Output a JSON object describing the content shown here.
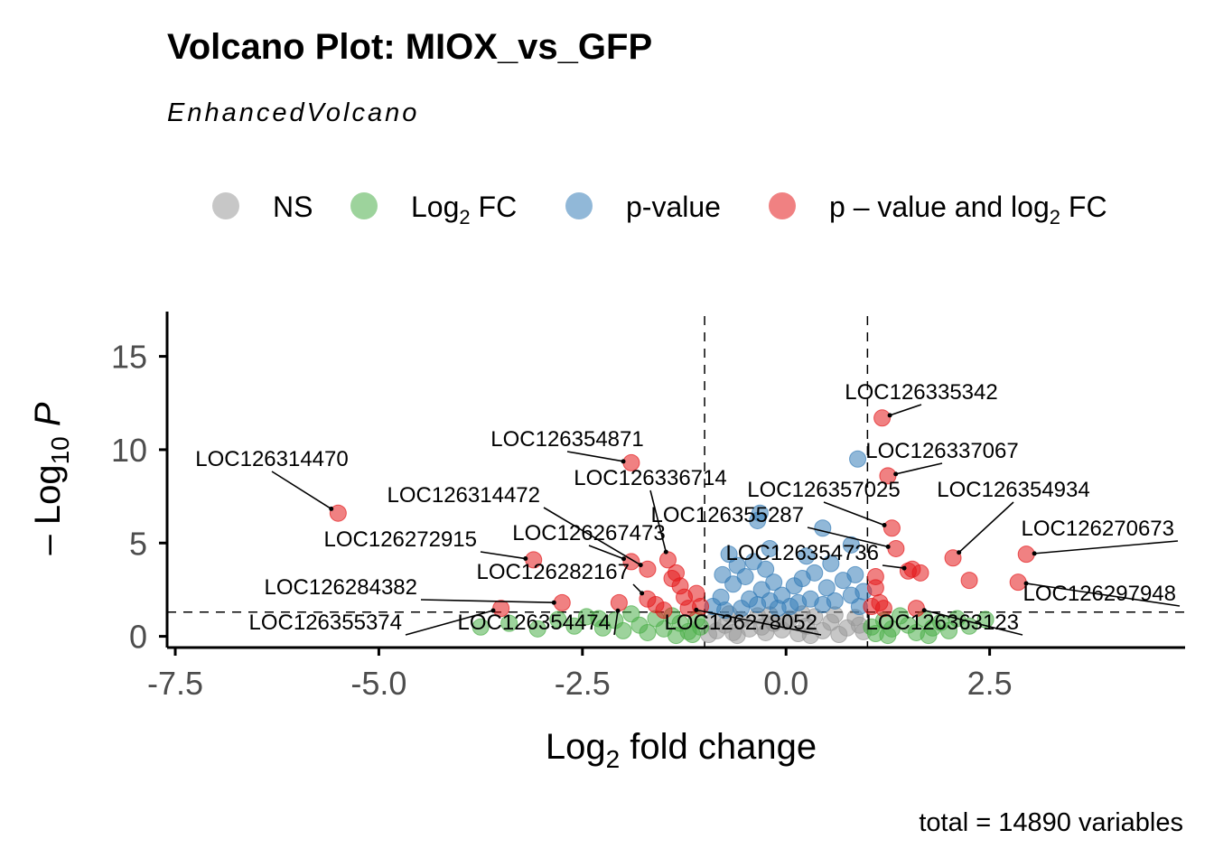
{
  "title": "Volcano Plot: MIOX_vs_GFP",
  "subtitle": "EnhancedVolcano",
  "caption": "total = 14890 variables",
  "colors": {
    "NS": "#999999",
    "Log2FC": "#4daf4a",
    "p-value": "#377eb8",
    "p-value-and-log2FC": "#e41a1c"
  },
  "legend": [
    {
      "key": "NS",
      "label": "NS",
      "color": "#999999"
    },
    {
      "key": "Log2FC",
      "label": "Log",
      "sub": "2",
      "tail": " FC",
      "color": "#4daf4a"
    },
    {
      "key": "p-value",
      "label": "p-value",
      "color": "#377eb8"
    },
    {
      "key": "p-value-and-log2FC",
      "label": "p – value and log",
      "sub": "2",
      "tail": " FC",
      "color": "#e41a1c"
    }
  ],
  "chart_data": {
    "type": "scatter",
    "title": "Volcano Plot: MIOX_vs_GFP",
    "xlabel": {
      "text": "Log",
      "sub": "2",
      "tail": " fold change"
    },
    "ylabel": {
      "prefix": "– Log",
      "sub": "10",
      "tail": " P"
    },
    "xlim": [
      -7.6,
      4.9
    ],
    "ylim": [
      -0.6,
      17.4
    ],
    "xticks": [
      -7.5,
      -5.0,
      -2.5,
      0.0,
      2.5
    ],
    "xtick_labels": [
      "-7.5",
      "-5.0",
      "-2.5",
      "0.0",
      "2.5"
    ],
    "yticks": [
      0,
      5,
      10,
      15
    ],
    "ytick_labels": [
      "0",
      "5",
      "10",
      "15"
    ],
    "fc_cutoff": [
      -1.0,
      1.0
    ],
    "p_cutoff_neglog10": 1.3,
    "series": [
      {
        "name": "NS",
        "color": "#999999",
        "points": [
          [
            -0.95,
            0.1
          ],
          [
            -0.85,
            0.3
          ],
          [
            -0.75,
            0.6
          ],
          [
            -0.65,
            0.2
          ],
          [
            -0.55,
            0.9
          ],
          [
            -0.45,
            0.4
          ],
          [
            -0.35,
            1.1
          ],
          [
            -0.25,
            0.2
          ],
          [
            -0.15,
            0.7
          ],
          [
            -0.05,
            0.35
          ],
          [
            0.05,
            0.95
          ],
          [
            0.15,
            0.15
          ],
          [
            0.25,
            0.55
          ],
          [
            0.35,
            1.05
          ],
          [
            0.45,
            0.3
          ],
          [
            0.55,
            0.75
          ],
          [
            0.65,
            0.1
          ],
          [
            0.75,
            0.45
          ],
          [
            0.85,
            1.0
          ],
          [
            0.95,
            0.25
          ],
          [
            -0.9,
            0.8
          ],
          [
            -0.6,
            0.05
          ],
          [
            -0.3,
            0.5
          ],
          [
            0.0,
            0.8
          ],
          [
            0.3,
            0.05
          ],
          [
            0.6,
            1.15
          ],
          [
            0.9,
            0.6
          ],
          [
            -0.7,
            1.2
          ],
          [
            0.2,
            1.2
          ],
          [
            -0.2,
            1.15
          ]
        ]
      },
      {
        "name": "Log2FC",
        "color": "#4daf4a",
        "points": [
          [
            -3.75,
            0.5
          ],
          [
            -3.4,
            0.7
          ],
          [
            -3.05,
            0.4
          ],
          [
            -2.8,
            0.9
          ],
          [
            -2.6,
            0.55
          ],
          [
            -2.45,
            1.05
          ],
          [
            -2.25,
            0.45
          ],
          [
            -2.1,
            0.85
          ],
          [
            -2.0,
            0.3
          ],
          [
            -1.9,
            1.2
          ],
          [
            -1.8,
            0.6
          ],
          [
            -1.7,
            0.2
          ],
          [
            -1.6,
            0.95
          ],
          [
            -1.5,
            0.4
          ],
          [
            -1.4,
            1.1
          ],
          [
            -1.3,
            0.7
          ],
          [
            -1.2,
            0.25
          ],
          [
            -1.1,
            0.9
          ],
          [
            -1.05,
            0.5
          ],
          [
            -1.15,
            0.1
          ],
          [
            1.05,
            0.5
          ],
          [
            1.1,
            0.15
          ],
          [
            1.2,
            0.85
          ],
          [
            1.3,
            0.4
          ],
          [
            1.4,
            1.1
          ],
          [
            1.5,
            0.6
          ],
          [
            1.6,
            0.2
          ],
          [
            1.7,
            0.95
          ],
          [
            1.8,
            0.45
          ],
          [
            1.9,
            0.75
          ],
          [
            2.0,
            0.3
          ],
          [
            2.1,
            0.95
          ],
          [
            2.25,
            0.55
          ],
          [
            2.45,
            0.9
          ],
          [
            1.25,
            0.05
          ],
          [
            1.75,
            0.05
          ],
          [
            -1.35,
            0.05
          ],
          [
            -2.3,
            0.95
          ]
        ]
      },
      {
        "name": "p-value",
        "color": "#377eb8",
        "points": [
          [
            -0.9,
            1.6
          ],
          [
            -0.8,
            2.1
          ],
          [
            -0.75,
            1.4
          ],
          [
            -0.65,
            2.8
          ],
          [
            -0.55,
            1.5
          ],
          [
            -0.5,
            3.2
          ],
          [
            -0.45,
            2.0
          ],
          [
            -0.4,
            4.0
          ],
          [
            -0.35,
            1.7
          ],
          [
            -0.3,
            2.5
          ],
          [
            -0.25,
            3.6
          ],
          [
            -0.2,
            1.9
          ],
          [
            -0.15,
            2.9
          ],
          [
            -0.1,
            1.5
          ],
          [
            -0.05,
            2.2
          ],
          [
            0.05,
            1.6
          ],
          [
            0.1,
            2.7
          ],
          [
            0.15,
            1.8
          ],
          [
            0.2,
            3.1
          ],
          [
            0.3,
            2.0
          ],
          [
            0.35,
            3.4
          ],
          [
            0.45,
            1.7
          ],
          [
            0.5,
            2.6
          ],
          [
            0.55,
            3.9
          ],
          [
            0.6,
            1.9
          ],
          [
            0.7,
            3.0
          ],
          [
            0.8,
            2.2
          ],
          [
            0.85,
            3.3
          ],
          [
            0.9,
            1.6
          ],
          [
            0.95,
            2.4
          ],
          [
            -0.78,
            3.3
          ],
          [
            -0.6,
            3.8
          ],
          [
            -0.35,
            6.2
          ],
          [
            -0.32,
            6.6
          ],
          [
            0.45,
            5.8
          ],
          [
            0.88,
            9.5
          ],
          [
            0.8,
            4.9
          ],
          [
            -0.7,
            4.4
          ],
          [
            0.25,
            4.3
          ],
          [
            -0.2,
            4.7
          ]
        ]
      },
      {
        "name": "p-value-and-log2FC",
        "color": "#e41a1c",
        "points": [
          [
            -5.5,
            6.6
          ],
          [
            -3.5,
            1.5
          ],
          [
            -3.1,
            4.1
          ],
          [
            -2.75,
            1.8
          ],
          [
            -2.05,
            1.8
          ],
          [
            -1.9,
            9.3
          ],
          [
            -1.9,
            4.0
          ],
          [
            -1.7,
            3.6
          ],
          [
            -1.7,
            2.0
          ],
          [
            -1.6,
            1.7
          ],
          [
            -1.5,
            1.4
          ],
          [
            -1.45,
            4.1
          ],
          [
            -1.4,
            3.1
          ],
          [
            -1.35,
            3.4
          ],
          [
            -1.3,
            2.7
          ],
          [
            -1.25,
            2.1
          ],
          [
            -1.2,
            1.5
          ],
          [
            -1.1,
            2.3
          ],
          [
            -1.05,
            1.6
          ],
          [
            1.05,
            1.6
          ],
          [
            1.1,
            3.2
          ],
          [
            1.15,
            1.8
          ],
          [
            1.18,
            11.7
          ],
          [
            1.25,
            8.6
          ],
          [
            1.3,
            5.8
          ],
          [
            1.35,
            4.7
          ],
          [
            1.5,
            3.5
          ],
          [
            1.55,
            3.6
          ],
          [
            1.65,
            3.4
          ],
          [
            1.6,
            1.5
          ],
          [
            2.05,
            4.2
          ],
          [
            2.25,
            3.0
          ],
          [
            2.85,
            2.9
          ],
          [
            2.95,
            4.4
          ],
          [
            1.1,
            2.6
          ],
          [
            1.2,
            1.5
          ]
        ]
      }
    ],
    "labels": [
      {
        "text": "LOC126335342",
        "x": 1.18,
        "y": 11.7
      },
      {
        "text": "LOC126337067",
        "x": 1.25,
        "y": 8.6
      },
      {
        "text": "LOC126357025",
        "x": 1.3,
        "y": 5.8
      },
      {
        "text": "LOC126354934",
        "x": 2.05,
        "y": 4.2
      },
      {
        "text": "LOC126270673",
        "x": 2.95,
        "y": 4.4
      },
      {
        "text": "LOC126355287",
        "x": 1.35,
        "y": 4.7
      },
      {
        "text": "LOC126354736",
        "x": 1.55,
        "y": 3.6
      },
      {
        "text": "LOC126297948",
        "x": 2.85,
        "y": 2.9
      },
      {
        "text": "LOC126363123",
        "x": 1.6,
        "y": 1.5
      },
      {
        "text": "LOC126278052",
        "x": -1.2,
        "y": 1.5
      },
      {
        "text": "LOC126354871",
        "x": -1.9,
        "y": 9.3
      },
      {
        "text": "LOC126336714",
        "x": -1.45,
        "y": 4.1
      },
      {
        "text": "LOC126314470",
        "x": -5.5,
        "y": 6.6
      },
      {
        "text": "LOC126314472",
        "x": -1.7,
        "y": 3.6
      },
      {
        "text": "LOC126272915",
        "x": -3.1,
        "y": 4.1
      },
      {
        "text": "LOC126267473",
        "x": -1.9,
        "y": 4.0
      },
      {
        "text": "LOC126282167",
        "x": -1.7,
        "y": 2.0
      },
      {
        "text": "LOC126284382",
        "x": -2.75,
        "y": 1.8
      },
      {
        "text": "LOC126355374",
        "x": -3.5,
        "y": 1.5
      },
      {
        "text": "LOC126354474",
        "x": -2.05,
        "y": 1.8
      }
    ]
  }
}
